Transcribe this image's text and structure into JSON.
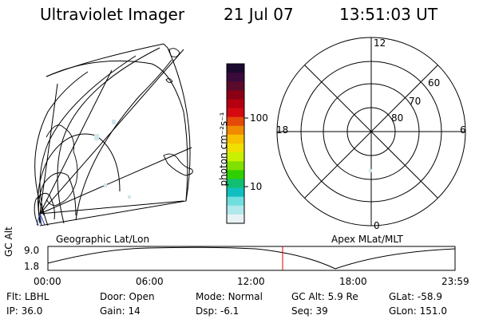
{
  "header": {
    "instrument": "Ultraviolet Imager",
    "date": "21 Jul 07",
    "time": "13:51:03 UT"
  },
  "geo_panel": {
    "label": "Geographic Lat/Lon"
  },
  "polar_panel": {
    "label": "Apex MLat/MLT",
    "mlt_labels": [
      "12",
      "18",
      "6",
      "0"
    ],
    "lat_labels": [
      "60",
      "70",
      "80"
    ]
  },
  "colorbar": {
    "unit_label": "photon cm⁻²s⁻¹",
    "ticks": [
      "100",
      "10"
    ],
    "colors": [
      "#1a0a2e",
      "#3a0a3a",
      "#5a0a2a",
      "#8a0015",
      "#b40010",
      "#d40a10",
      "#e64a0a",
      "#f08a00",
      "#f8c000",
      "#f0e000",
      "#c8f000",
      "#80e000",
      "#30d000",
      "#10c070",
      "#10c0c0",
      "#70dede",
      "#b0e8ec",
      "#e8f2f4"
    ]
  },
  "altitude_plot": {
    "ylabel": "GC Alt",
    "yticks": [
      "9.0",
      "1.8"
    ],
    "xticks": [
      "00:00",
      "06:00",
      "12:00",
      "18:00",
      "23:59"
    ],
    "marker_time": "13:51",
    "marker_color": "#dd0000"
  },
  "status": {
    "flt_label": "Flt:",
    "flt_value": "LBHL",
    "door_label": "Door:",
    "door_value": "Open",
    "mode_label": "Mode:",
    "mode_value": "Normal",
    "gcalt_label": "GC Alt:",
    "gcalt_value": "5.9 Re",
    "glat_label": "GLat:",
    "glat_value": "-58.9",
    "ip_label": "IP:",
    "ip_value": "36.0",
    "gain_label": "Gain:",
    "gain_value": "14",
    "dsp_label": "Dsp:",
    "dsp_value": "-6.1",
    "seq_label": "Seq:",
    "seq_value": "39",
    "glon_label": "GLon:",
    "glon_value": "151.0"
  }
}
